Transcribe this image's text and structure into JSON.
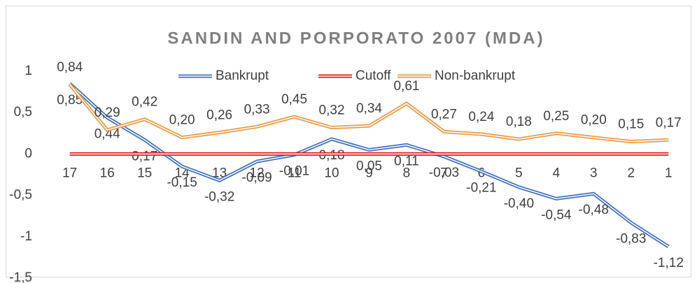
{
  "chart_data": {
    "type": "line",
    "title": "SANDIN AND PORPORATO 2007 (MDA)",
    "categories": [
      "17",
      "16",
      "15",
      "14",
      "13",
      "12",
      "11",
      "10",
      "9",
      "8",
      "7",
      "6",
      "5",
      "4",
      "3",
      "2",
      "1"
    ],
    "series": [
      {
        "name": "Bankrupt",
        "color": "#4472c4",
        "values": [
          0.85,
          0.44,
          0.17,
          -0.15,
          -0.32,
          -0.09,
          -0.01,
          0.18,
          0.05,
          0.11,
          -0.03,
          -0.21,
          -0.4,
          -0.54,
          -0.48,
          -0.83,
          -1.12
        ],
        "value_labels": [
          "0,85",
          "0,44",
          "0,17",
          "-0,15",
          "-0,32",
          "-0,09",
          "-0,01",
          "0,18",
          "0,05",
          "0,11",
          "-0,03",
          "-0,21",
          "-0,40",
          "-0,54",
          "-0,48",
          "-0,83",
          "-1,12"
        ]
      },
      {
        "name": "Cutoff",
        "color": "#e31a1c",
        "values": [
          0,
          0,
          0,
          0,
          0,
          0,
          0,
          0,
          0,
          0,
          0,
          0,
          0,
          0,
          0,
          0,
          0
        ]
      },
      {
        "name": "Non-bankrupt",
        "color": "#ed9b45",
        "values": [
          0.84,
          0.29,
          0.42,
          0.2,
          0.26,
          0.33,
          0.45,
          0.32,
          0.34,
          0.61,
          0.27,
          0.24,
          0.18,
          0.25,
          0.2,
          0.15,
          0.17
        ],
        "value_labels": [
          "0,84",
          "0,29",
          "0,42",
          "0,20",
          "0,26",
          "0,33",
          "0,45",
          "0,32",
          "0,34",
          "0,61",
          "0,27",
          "0,24",
          "0,18",
          "0,25",
          "0,20",
          "0,15",
          "0,17"
        ]
      }
    ],
    "ylim": [
      -1.5,
      1
    ],
    "yticks": [
      -1.5,
      -1,
      -0.5,
      0,
      0.5,
      1
    ],
    "ytick_labels": [
      "-1,5",
      "-1",
      "-0,5",
      "0",
      "0,5",
      "1"
    ],
    "legend": "top",
    "grid": false
  }
}
